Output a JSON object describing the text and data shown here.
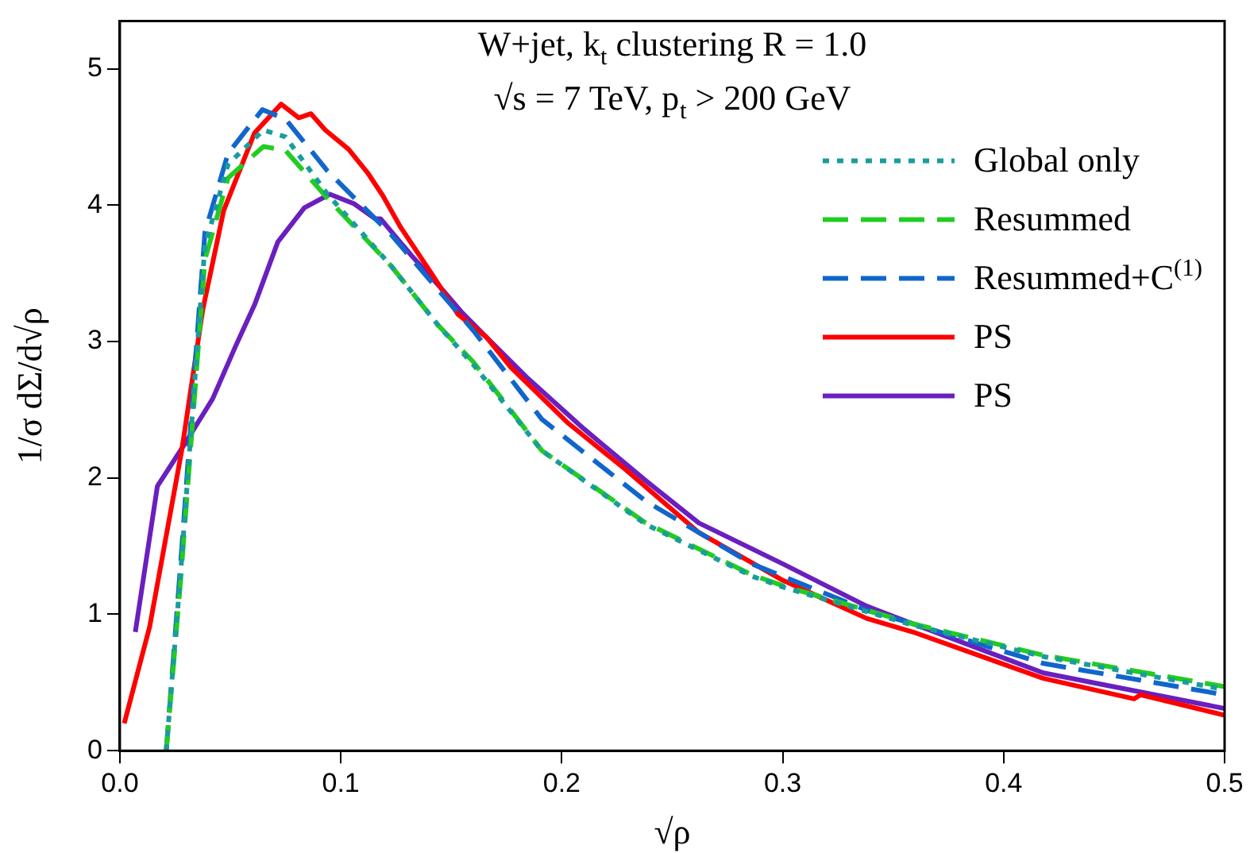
{
  "chart_data": {
    "type": "line",
    "title": "W+jet, k$_{t}$ clustering R = 1.0",
    "subtitle": "√s = 7 TeV, p$_{t}$ > 200 GeV",
    "xlabel": "√ρ",
    "ylabel": "1/σ dΣ/d√ρ",
    "xlim": [
      0,
      0.5
    ],
    "ylim": [
      0,
      5.35
    ],
    "xticks": [
      {
        "value": 0,
        "label": "0.0"
      },
      0.1,
      0.2,
      0.3,
      0.4,
      0.5
    ],
    "yticks": [
      0,
      1,
      2,
      3,
      4,
      5
    ],
    "grid": false,
    "legend": "top right",
    "series": [
      {
        "name": "Global only",
        "color": "#1a9c9c",
        "line_style": "dotted",
        "x": [
          0.021,
          0.0275,
          0.035,
          0.0385,
          0.049,
          0.065,
          0.075,
          0.094,
          0.123,
          0.144,
          0.16,
          0.191,
          0.238,
          0.286,
          0.3,
          0.338,
          0.359,
          0.418,
          0.5
        ],
        "values": [
          0,
          1.3,
          2.95,
          3.7,
          4.3,
          4.55,
          4.5,
          4.08,
          3.55,
          3.12,
          2.83,
          2.2,
          1.66,
          1.28,
          1.2,
          1.02,
          0.92,
          0.69,
          0.45
        ]
      },
      {
        "name": "Resummed",
        "color": "#22cc22",
        "line_style": "dashed",
        "x": [
          0.021,
          0.0275,
          0.035,
          0.0385,
          0.049,
          0.065,
          0.075,
          0.094,
          0.123,
          0.144,
          0.16,
          0.191,
          0.238,
          0.286,
          0.3,
          0.338,
          0.359,
          0.418,
          0.5
        ],
        "values": [
          0,
          1.25,
          2.85,
          3.6,
          4.2,
          4.43,
          4.4,
          4.05,
          3.55,
          3.12,
          2.85,
          2.2,
          1.67,
          1.29,
          1.21,
          1.03,
          0.93,
          0.7,
          0.47
        ]
      },
      {
        "name": "Resummed+C$^{(1)}$",
        "color": "#1166cc",
        "line_style": "dashed",
        "x": [
          0.021,
          0.0275,
          0.035,
          0.0385,
          0.049,
          0.0645,
          0.075,
          0.094,
          0.123,
          0.144,
          0.16,
          0.191,
          0.238,
          0.286,
          0.338,
          0.359,
          0.418,
          0.5
        ],
        "values": [
          0,
          1.37,
          3.04,
          3.8,
          4.38,
          4.7,
          4.63,
          4.25,
          3.78,
          3.38,
          3.08,
          2.43,
          1.83,
          1.37,
          1.03,
          0.93,
          0.64,
          0.41
        ]
      },
      {
        "name": "PS",
        "color": "#ff0000",
        "line_style": "solid",
        "x": [
          0.002,
          0.0135,
          0.028,
          0.0375,
          0.047,
          0.061,
          0.073,
          0.081,
          0.0865,
          0.093,
          0.1035,
          0.112,
          0.119,
          0.127,
          0.141,
          0.153,
          0.166,
          0.177,
          0.203,
          0.229,
          0.262,
          0.3,
          0.338,
          0.359,
          0.418,
          0.459,
          0.462,
          0.5
        ],
        "values": [
          0.2,
          0.91,
          2.2,
          3.23,
          3.96,
          4.53,
          4.74,
          4.64,
          4.67,
          4.55,
          4.41,
          4.24,
          4.07,
          3.84,
          3.5,
          3.2,
          3.03,
          2.81,
          2.4,
          2.06,
          1.6,
          1.25,
          0.97,
          0.87,
          0.53,
          0.38,
          0.41,
          0.26
        ]
      },
      {
        "name": "PS",
        "color": "#6a1fbf",
        "line_style": "solid",
        "x": [
          0.007,
          0.017,
          0.029,
          0.042,
          0.0525,
          0.061,
          0.0715,
          0.0835,
          0.095,
          0.106,
          0.1155,
          0.118,
          0.132,
          0.146,
          0.155,
          0.166,
          0.184,
          0.21,
          0.238,
          0.262,
          0.3,
          0.338,
          0.359,
          0.418,
          0.5
        ],
        "values": [
          0.87,
          1.94,
          2.24,
          2.58,
          2.97,
          3.27,
          3.73,
          3.98,
          4.08,
          4.01,
          3.9,
          3.9,
          3.63,
          3.38,
          3.21,
          3.03,
          2.74,
          2.36,
          1.98,
          1.67,
          1.37,
          1.06,
          0.93,
          0.57,
          0.31
        ]
      }
    ]
  }
}
